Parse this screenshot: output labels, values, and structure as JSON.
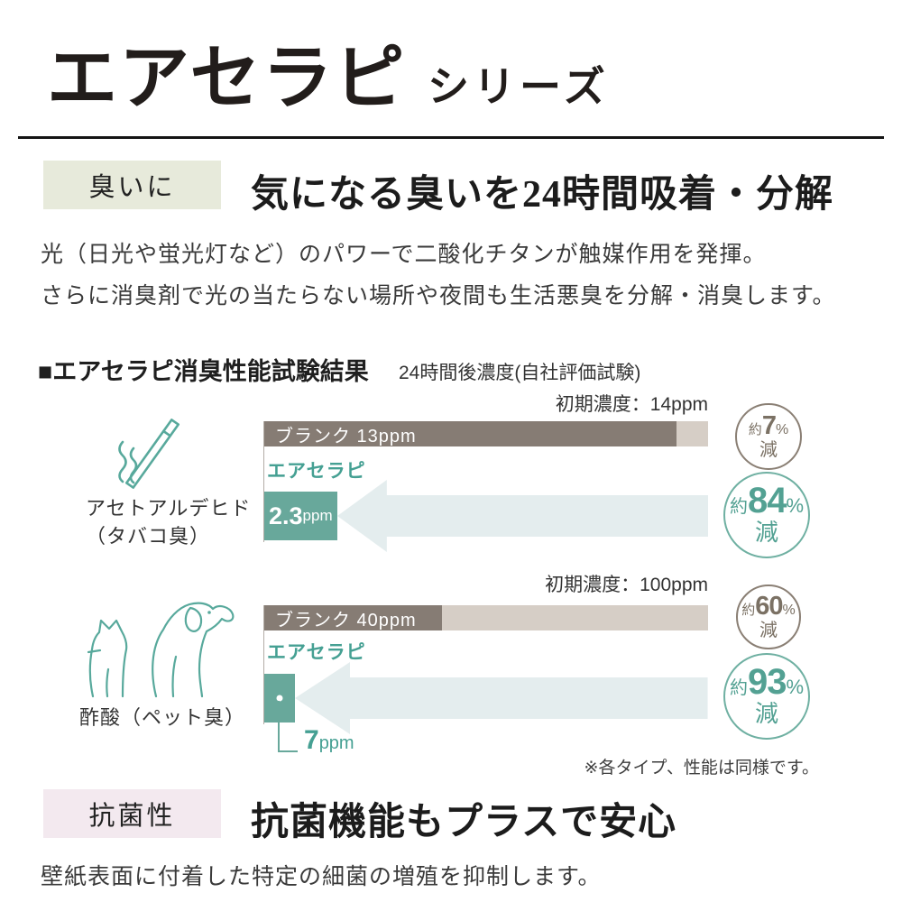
{
  "header": {
    "title": "エアセラピ",
    "subtitle": "シリーズ"
  },
  "section_odor": {
    "badge": "臭いに",
    "headline": "気になる臭いを24時間吸着・分解",
    "body_line1": "光（日光や蛍光灯など）のパワーで二酸化チタンが触媒作用を発揮。",
    "body_line2": "さらに消臭剤で光の当たらない場所や夜間も生活悪臭を分解・消臭します。"
  },
  "test_results": {
    "heading": "■エアセラピ消臭性能試験結果",
    "heading_note": "24時間後濃度(自社評価試験)",
    "footnote": "※各タイプ、性能は同様です。"
  },
  "charts": [
    {
      "name": "acetaldehyde",
      "icon": "cigarette-icon",
      "label_lines": [
        "アセトアルデヒド",
        "（タバコ臭）"
      ],
      "initial_label": "初期濃度：14ppm",
      "blank_label": "ブランク 13ppm",
      "product_label": "エアセラピ",
      "value_number": "2.3",
      "value_unit": "ppm",
      "blank_circle": {
        "about": "約",
        "number": "7",
        "percent": "%",
        "down": "減"
      },
      "product_circle": {
        "about": "約",
        "number": "84",
        "percent": "%",
        "down": "減"
      }
    },
    {
      "name": "acetic-acid",
      "icon": "pets-icon",
      "label_lines": [
        "酢酸（ペット臭）"
      ],
      "initial_label": "初期濃度：100ppm",
      "blank_label": "ブランク 40ppm",
      "product_label": "エアセラピ",
      "value_number": "7",
      "value_unit": "ppm",
      "blank_circle": {
        "about": "約",
        "number": "60",
        "percent": "%",
        "down": "減"
      },
      "product_circle": {
        "about": "約",
        "number": "93",
        "percent": "%",
        "down": "減"
      }
    }
  ],
  "chart_data": [
    {
      "type": "bar",
      "title": "アセトアルデヒド（タバコ臭）",
      "categories": [
        "ブランク",
        "エアセラピ"
      ],
      "values": [
        13,
        2.3
      ],
      "unit": "ppm",
      "initial_concentration": 14,
      "xlim": [
        0,
        14
      ],
      "reduction_labels": [
        "約7%減",
        "約84%減"
      ],
      "note": "24時間後濃度(自社評価試験)"
    },
    {
      "type": "bar",
      "title": "酢酸（ペット臭）",
      "categories": [
        "ブランク",
        "エアセラピ"
      ],
      "values": [
        40,
        7
      ],
      "unit": "ppm",
      "initial_concentration": 100,
      "xlim": [
        0,
        100
      ],
      "reduction_labels": [
        "約60%減",
        "約93%減"
      ],
      "note": "24時間後濃度(自社評価試験)"
    }
  ],
  "section_antibacterial": {
    "badge": "抗菌性",
    "headline": "抗菌機能もプラスで安心",
    "body": "壁紙表面に付着した特定の細菌の増殖を抑制します。"
  },
  "colors": {
    "teal": "#68a89b",
    "teal_text": "#45a093",
    "bar_dark": "#867c74",
    "bar_light": "#d6cec6",
    "arrow": "#e4edee",
    "badge_odor_bg": "#e7eadb",
    "badge_antibacterial_bg": "#f3e9ef",
    "circle_gray": "#8a7f74"
  }
}
